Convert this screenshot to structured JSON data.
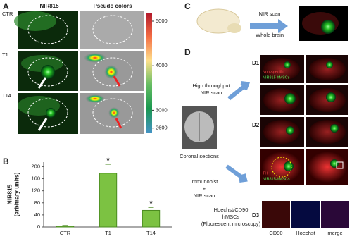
{
  "panel_a": {
    "label": "A",
    "headers": [
      "NIR815",
      "Pseudo colors"
    ],
    "rows": [
      "CTR",
      "T1",
      "T14"
    ],
    "colorbar": {
      "lim": [
        2500,
        5190
      ],
      "ticks": [
        5000,
        4000,
        3000,
        2600
      ]
    }
  },
  "chart_data": {
    "type": "bar",
    "label": "B",
    "ylabel": [
      "NIR815",
      "(arbitrary units)"
    ],
    "categories": [
      "CTR",
      "T1",
      "T14"
    ],
    "values": [
      3,
      178,
      55
    ],
    "errors": [
      2,
      30,
      10
    ],
    "significance": [
      null,
      "*",
      "*"
    ],
    "color": "#7cc242",
    "ylim": [
      0,
      215
    ],
    "yticks": [
      0,
      40,
      80,
      120,
      160,
      200
    ]
  },
  "panel_c": {
    "label": "C",
    "arrow_top": "NIR scan",
    "arrow_bottom": "Whole brain"
  },
  "panel_d": {
    "label": "D",
    "sub1": "D1",
    "sub2": "D2",
    "sub3": "D3",
    "step1": [
      "High throughput",
      "NIR scan"
    ],
    "sections": "Coronal sections",
    "step2": [
      "Immunohist",
      "+",
      "NIR scan"
    ],
    "step3": [
      "Hoechst/CD90",
      "hMSCs",
      "(Fluorescent microscopy)"
    ],
    "image_labels1": [
      "Non-specific",
      "NIR815-hMSCs"
    ],
    "image_labels2": [
      "TH",
      "NIR815-hMSCs"
    ],
    "micro_labels": [
      "CD90",
      "Hoechst",
      "merge"
    ]
  }
}
